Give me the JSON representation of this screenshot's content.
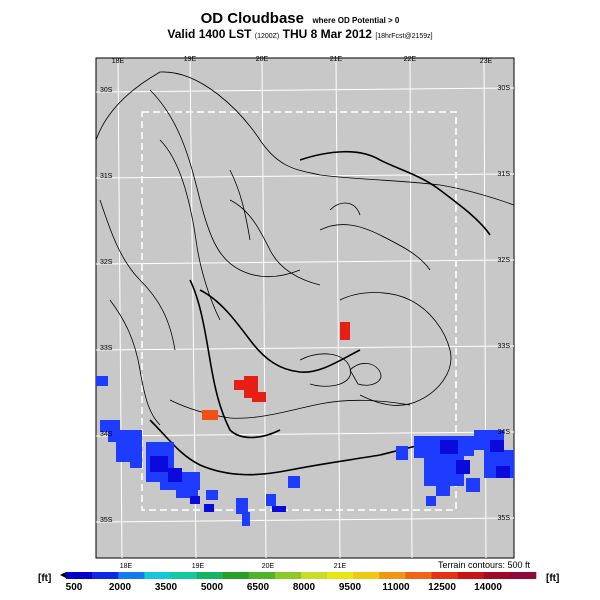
{
  "header": {
    "title": "OD Cloudbase",
    "title_note": "where OD Potential > 0",
    "valid_prefix": "Valid 1400 LST",
    "valid_code": "(1200Z)",
    "valid_date": "THU 8 Mar 2012",
    "forecast_info": "[18hrFcst@2159z]"
  },
  "map": {
    "background_color": "#c8c8c8",
    "lon_labels_top": [
      "18E",
      "19E",
      "20E",
      "21E",
      "22E",
      "23E"
    ],
    "lon_labels_bottom": [
      "18E",
      "19E",
      "20E",
      "21E"
    ],
    "lat_labels_left": [
      "30S",
      "31S",
      "32S",
      "33S",
      "34S",
      "35S"
    ],
    "lat_labels_right": [
      "30S",
      "31S",
      "32S",
      "33S",
      "34S",
      "35S"
    ],
    "terrain_note": "Terrain contours: 500 ft"
  },
  "colorbar": {
    "unit": "[ft]",
    "ticks": [
      "500",
      "2000",
      "3500",
      "5000",
      "6500",
      "8000",
      "9500",
      "11000",
      "12500",
      "14000"
    ],
    "colors": [
      "#0000c8",
      "#0a28e6",
      "#1478f0",
      "#14c8dc",
      "#14c8a0",
      "#14b464",
      "#28a028",
      "#50b428",
      "#8cc828",
      "#c8dc28",
      "#e6e614",
      "#f0c814",
      "#f09614",
      "#f06414",
      "#e63214",
      "#c81414",
      "#a00a28",
      "#8c0a3c"
    ]
  },
  "cells": {
    "blue": "#1e3cff",
    "deep_blue": "#0a0adc",
    "red": "#e61e14",
    "orange_red": "#f05014"
  }
}
